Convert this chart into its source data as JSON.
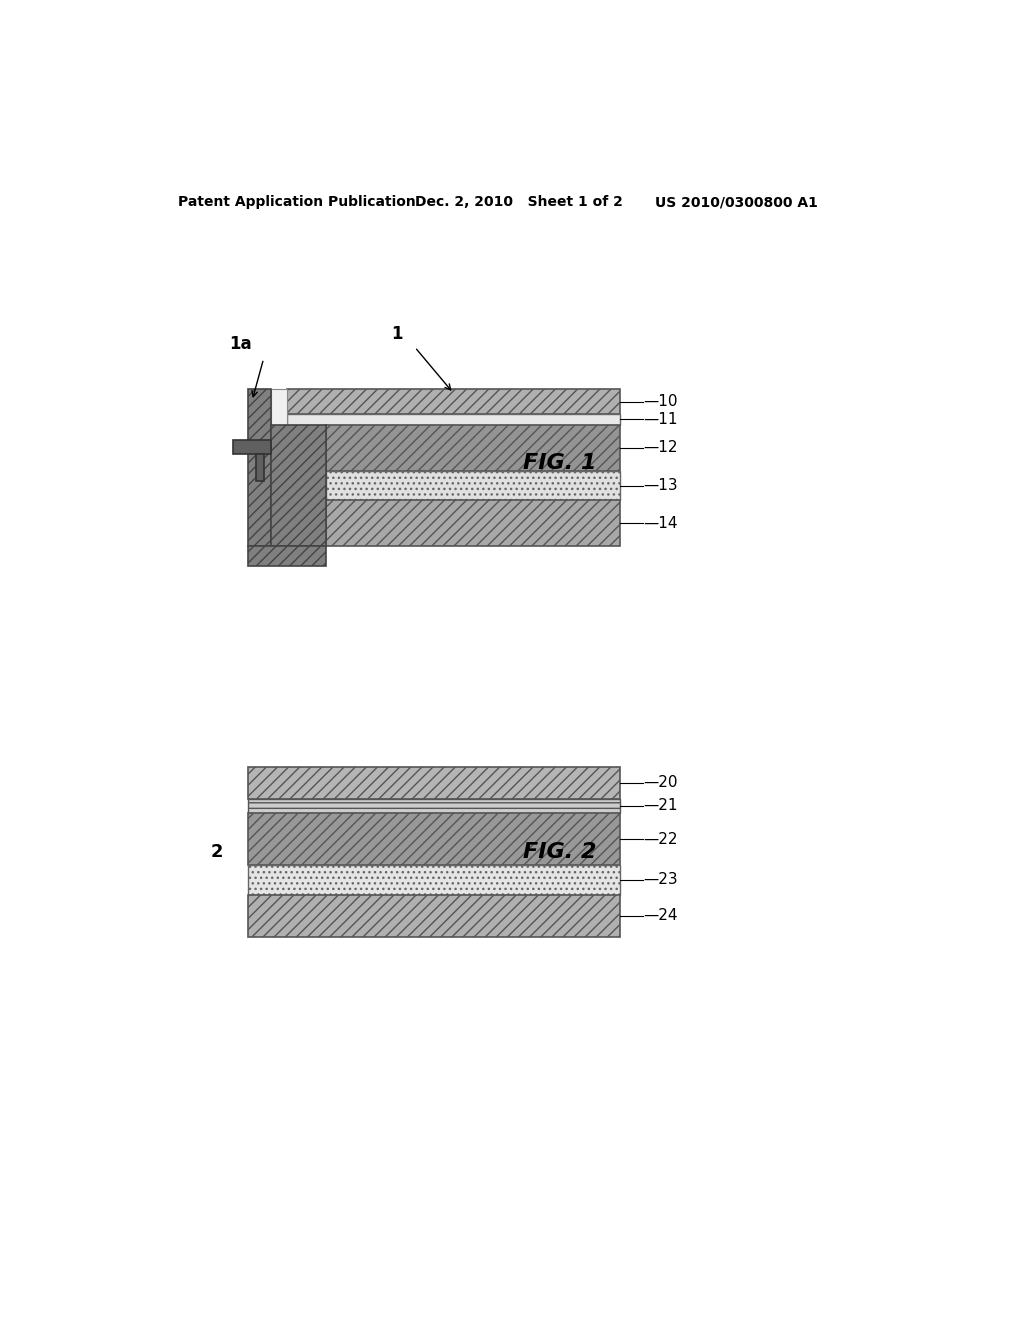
{
  "header_left": "Patent Application Publication",
  "header_mid": "Dec. 2, 2010   Sheet 1 of 2",
  "header_right": "US 2010/0300800 A1",
  "fig1_label": "FIG. 1",
  "fig2_label": "FIG. 2",
  "background_color": "#ffffff",
  "fig1": {
    "label_1a": "1a",
    "label_1": "1",
    "frame_color": "#909090",
    "frame_dark": "#606060",
    "layer_heights": [
      32,
      14,
      60,
      38,
      60
    ],
    "layer_colors": [
      "#b8b8b8",
      "#e0e0e0",
      "#909090",
      "#d8d8d8",
      "#a0a0a0"
    ],
    "layer_labels": [
      "10",
      "11",
      "12",
      "13",
      "14"
    ]
  },
  "fig2": {
    "label_2": "2",
    "layer_heights": [
      42,
      18,
      68,
      38,
      55
    ],
    "layer_colors": [
      "#b0b0b0",
      "#c8c8c8",
      "#909090",
      "#e0e0e0",
      "#b0b0b0"
    ],
    "layer_labels": [
      "20",
      "21",
      "22",
      "23",
      "24"
    ]
  }
}
